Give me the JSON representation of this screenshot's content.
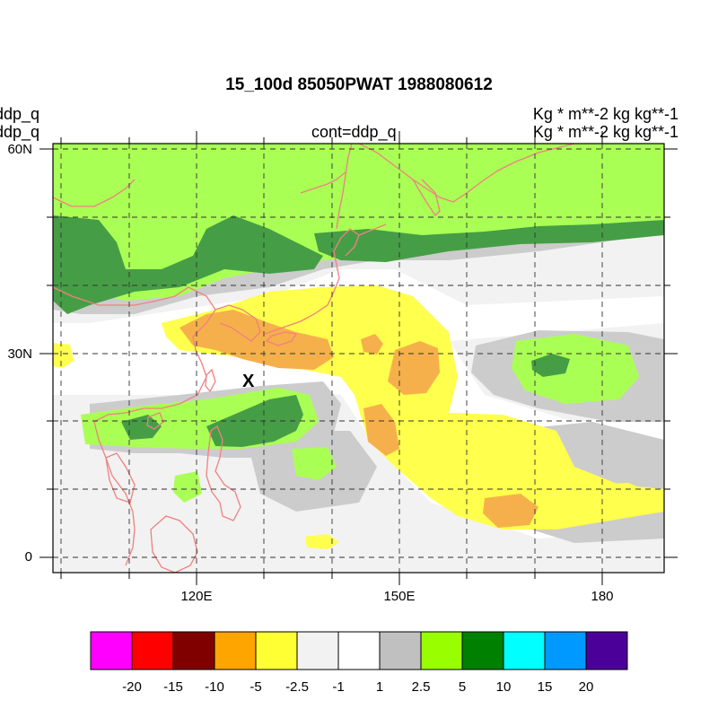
{
  "title": "15_100d 85050PWAT  1988080612",
  "left_labels": [
    "ddp_q",
    "ddp_q"
  ],
  "center_label": "cont=ddp_q",
  "right_labels": [
    "Kg  * m**-2 kg kg**-1",
    "Kg  * m**-2 kg kg**-1"
  ],
  "marker": "X",
  "axes": {
    "lat_labels": [
      "60N",
      "30N",
      "0"
    ],
    "lon_labels": [
      "120E",
      "150E",
      "180"
    ]
  },
  "legend": {
    "colors": [
      "#ff00ff",
      "#ff0000",
      "#800000",
      "#ffa500",
      "#ffff33",
      "#f2f2f2",
      "#ffffff",
      "#c0c0c0",
      "#99ff00",
      "#008000",
      "#00ffff",
      "#0099ff",
      "#4b0099"
    ],
    "labels": [
      "-20",
      "-15",
      "-10",
      "-5",
      "-2.5",
      "-1",
      "1",
      "2.5",
      "5",
      "10",
      "15",
      "20"
    ]
  },
  "colors": {
    "coastline": "#f08080",
    "light_gray": "#f2f2f2",
    "gray": "#cccccc",
    "light_green": "#aaff55",
    "dark_green": "#459e45",
    "yellow": "#ffff4d",
    "orange": "#f6b04b"
  }
}
